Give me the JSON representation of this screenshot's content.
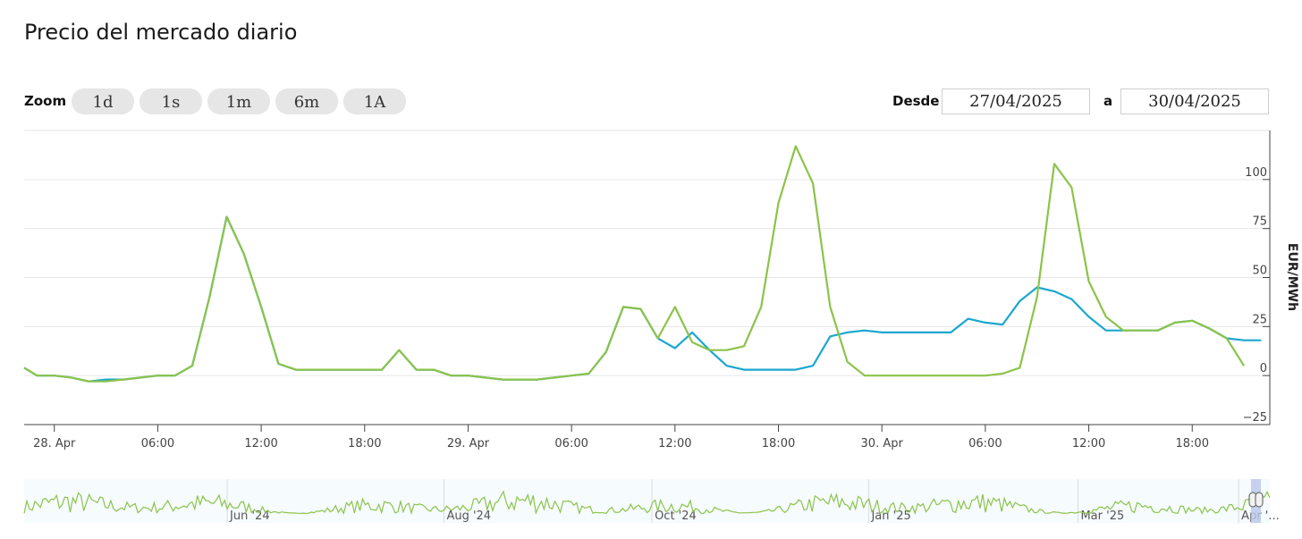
{
  "title": "Precio del mercado diario",
  "zoom": {
    "label": "Zoom",
    "buttons": [
      "1d",
      "1s",
      "1m",
      "6m",
      "1A"
    ]
  },
  "range": {
    "from_label": "Desde",
    "from_value": "27/04/2025",
    "to_label": "a",
    "to_value": "30/04/2025"
  },
  "colors": {
    "green": "#8bc34a",
    "blue": "#1aa7cf",
    "grid": "#e6e6e6",
    "navigator_fill": "#eef7fb"
  },
  "chart_data": {
    "type": "line",
    "ylabel": "EUR/MWh",
    "ylim": [
      -25,
      125
    ],
    "yticks": [
      -25,
      0,
      25,
      50,
      75,
      100
    ],
    "x_unit": "hours from 28 Apr 00:00",
    "xlim": [
      -1.75,
      70.5
    ],
    "xticks": [
      {
        "x": 0,
        "label": "28. Apr"
      },
      {
        "x": 6,
        "label": "06:00"
      },
      {
        "x": 12,
        "label": "12:00"
      },
      {
        "x": 18,
        "label": "18:00"
      },
      {
        "x": 24,
        "label": "29. Apr"
      },
      {
        "x": 30,
        "label": "06:00"
      },
      {
        "x": 36,
        "label": "12:00"
      },
      {
        "x": 42,
        "label": "18:00"
      },
      {
        "x": 48,
        "label": "30. Apr"
      },
      {
        "x": 54,
        "label": "06:00"
      },
      {
        "x": 60,
        "label": "12:00"
      },
      {
        "x": 66,
        "label": "18:00"
      }
    ],
    "grid": true,
    "series": [
      {
        "color": "#1aa7cf",
        "points": [
          [
            -1.75,
            4
          ],
          [
            -1,
            0
          ],
          [
            0,
            0
          ],
          [
            1,
            -1
          ],
          [
            2,
            -3
          ],
          [
            3,
            -2
          ],
          [
            4,
            -2
          ],
          [
            5,
            -1
          ],
          [
            6,
            0
          ],
          [
            7,
            0
          ],
          [
            8,
            5
          ],
          [
            9,
            40
          ],
          [
            10,
            81
          ],
          [
            11,
            62
          ],
          [
            12,
            35
          ],
          [
            13,
            6
          ],
          [
            14,
            3
          ],
          [
            15,
            3
          ],
          [
            16,
            3
          ],
          [
            17,
            3
          ],
          [
            18,
            3
          ],
          [
            19,
            3
          ],
          [
            20,
            13
          ],
          [
            21,
            3
          ],
          [
            22,
            3
          ],
          [
            23,
            0
          ],
          [
            24,
            0
          ],
          [
            25,
            -1
          ],
          [
            26,
            -2
          ],
          [
            27,
            -2
          ],
          [
            28,
            -2
          ],
          [
            29,
            -1
          ],
          [
            30,
            0
          ],
          [
            31,
            1
          ],
          [
            32,
            12
          ],
          [
            33,
            35
          ],
          [
            34,
            34
          ],
          [
            35,
            19
          ],
          [
            36,
            14
          ],
          [
            37,
            22
          ],
          [
            38,
            13
          ],
          [
            39,
            5
          ],
          [
            40,
            3
          ],
          [
            41,
            3
          ],
          [
            42,
            3
          ],
          [
            43,
            3
          ],
          [
            44,
            5
          ],
          [
            45,
            20
          ],
          [
            46,
            22
          ],
          [
            47,
            23
          ],
          [
            48,
            22
          ],
          [
            49,
            22
          ],
          [
            50,
            22
          ],
          [
            51,
            22
          ],
          [
            52,
            22
          ],
          [
            53,
            29
          ],
          [
            54,
            27
          ],
          [
            55,
            26
          ],
          [
            56,
            38
          ],
          [
            57,
            45
          ],
          [
            58,
            43
          ],
          [
            59,
            39
          ],
          [
            60,
            30
          ],
          [
            61,
            23
          ],
          [
            62,
            23
          ],
          [
            63,
            23
          ],
          [
            64,
            23
          ],
          [
            65,
            27
          ],
          [
            66,
            28
          ],
          [
            67,
            24
          ],
          [
            68,
            19
          ],
          [
            69,
            18
          ],
          [
            70,
            18
          ]
        ]
      },
      {
        "color": "#8bc34a",
        "points": [
          [
            -1.75,
            4
          ],
          [
            -1,
            0
          ],
          [
            0,
            0
          ],
          [
            1,
            -1
          ],
          [
            2,
            -3
          ],
          [
            3,
            -3
          ],
          [
            4,
            -2
          ],
          [
            5,
            -1
          ],
          [
            6,
            0
          ],
          [
            7,
            0
          ],
          [
            8,
            5
          ],
          [
            9,
            40
          ],
          [
            10,
            81
          ],
          [
            11,
            62
          ],
          [
            12,
            35
          ],
          [
            13,
            6
          ],
          [
            14,
            3
          ],
          [
            15,
            3
          ],
          [
            16,
            3
          ],
          [
            17,
            3
          ],
          [
            18,
            3
          ],
          [
            19,
            3
          ],
          [
            20,
            13
          ],
          [
            21,
            3
          ],
          [
            22,
            3
          ],
          [
            23,
            0
          ],
          [
            24,
            0
          ],
          [
            25,
            -1
          ],
          [
            26,
            -2
          ],
          [
            27,
            -2
          ],
          [
            28,
            -2
          ],
          [
            29,
            -1
          ],
          [
            30,
            0
          ],
          [
            31,
            1
          ],
          [
            32,
            12
          ],
          [
            33,
            35
          ],
          [
            34,
            34
          ],
          [
            35,
            19
          ],
          [
            36,
            35
          ],
          [
            37,
            17
          ],
          [
            38,
            13
          ],
          [
            39,
            13
          ],
          [
            40,
            15
          ],
          [
            41,
            35
          ],
          [
            42,
            88
          ],
          [
            43,
            117
          ],
          [
            44,
            98
          ],
          [
            45,
            35
          ],
          [
            46,
            7
          ],
          [
            47,
            0
          ],
          [
            48,
            0
          ],
          [
            49,
            0
          ],
          [
            50,
            0
          ],
          [
            51,
            0
          ],
          [
            52,
            0
          ],
          [
            53,
            0
          ],
          [
            54,
            0
          ],
          [
            55,
            1
          ],
          [
            56,
            4
          ],
          [
            57,
            40
          ],
          [
            58,
            108
          ],
          [
            59,
            96
          ],
          [
            60,
            48
          ],
          [
            61,
            30
          ],
          [
            62,
            23
          ],
          [
            63,
            23
          ],
          [
            64,
            23
          ],
          [
            65,
            27
          ],
          [
            66,
            28
          ],
          [
            67,
            24
          ],
          [
            68,
            19
          ],
          [
            69,
            5
          ]
        ]
      }
    ]
  },
  "navigator": {
    "labels": [
      "Jun '24",
      "Aug '24",
      "Oct '24",
      "Jan '25",
      "Mar '25",
      "Apr '..."
    ],
    "label_positions": [
      0.163,
      0.337,
      0.504,
      0.678,
      0.846,
      0.975
    ]
  }
}
